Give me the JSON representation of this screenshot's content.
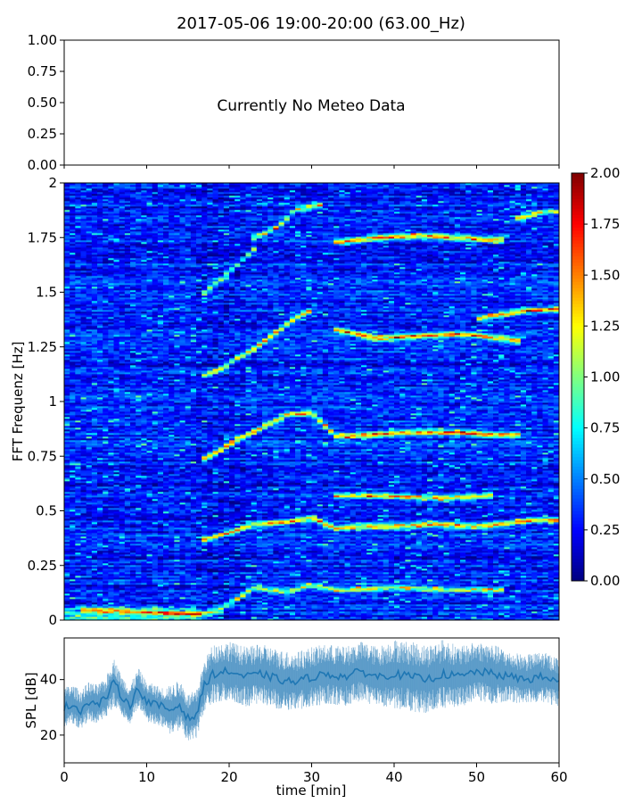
{
  "title": "2017-05-06 19:00-20:00 (63.00_Hz)",
  "chart_data": [
    {
      "panel": "meteo",
      "type": "line",
      "annotation": "Currently No Meteo Data",
      "ylim": [
        0,
        1
      ],
      "yticks": [
        "0.00",
        "0.25",
        "0.50",
        "0.75",
        "1.00"
      ],
      "series": []
    },
    {
      "panel": "spectrogram",
      "type": "heatmap",
      "ylabel": "FFT Frequenz [Hz]",
      "ylim": [
        0,
        2
      ],
      "yticks": [
        "0",
        "0.25",
        "0.5",
        "0.75",
        "1",
        "1.25",
        "1.5",
        "1.75",
        "2"
      ],
      "xlim": [
        0,
        60
      ],
      "colorbar": {
        "range": [
          0,
          2
        ],
        "colormap": "jet",
        "ticks": [
          "0.00",
          "0.25",
          "0.50",
          "0.75",
          "1.00",
          "1.25",
          "1.50",
          "1.75",
          "2.00"
        ]
      },
      "background_level": 0.3,
      "ridges": [
        {
          "t": [
            2,
            10,
            17,
            19,
            23,
            27,
            30,
            33,
            40,
            47,
            53
          ],
          "f": [
            0.05,
            0.04,
            0.03,
            0.05,
            0.15,
            0.13,
            0.16,
            0.14,
            0.15,
            0.14,
            0.14
          ],
          "level": 1.2
        },
        {
          "t": [
            17,
            20,
            23,
            27,
            30,
            33,
            36,
            40,
            45,
            50,
            53,
            57,
            60
          ],
          "f": [
            0.37,
            0.4,
            0.44,
            0.45,
            0.47,
            0.42,
            0.43,
            0.43,
            0.44,
            0.43,
            0.44,
            0.46,
            0.46
          ],
          "level": 1.45
        },
        {
          "t": [
            33,
            38,
            43,
            48,
            52
          ],
          "f": [
            0.57,
            0.57,
            0.56,
            0.56,
            0.57
          ],
          "level": 1.3
        },
        {
          "t": [
            17,
            19,
            21,
            24,
            27,
            30,
            33,
            37,
            42,
            47,
            52,
            55
          ],
          "f": [
            0.74,
            0.78,
            0.83,
            0.88,
            0.94,
            0.95,
            0.84,
            0.85,
            0.86,
            0.86,
            0.85,
            0.85
          ],
          "level": 1.5
        },
        {
          "t": [
            17,
            19,
            21,
            23,
            25,
            28,
            30
          ],
          "f": [
            1.12,
            1.15,
            1.2,
            1.24,
            1.3,
            1.38,
            1.42
          ],
          "level": 1.35
        },
        {
          "t": [
            33,
            38,
            43,
            48,
            53,
            55
          ],
          "f": [
            1.33,
            1.29,
            1.3,
            1.31,
            1.29,
            1.28
          ],
          "level": 1.45
        },
        {
          "t": [
            50,
            53,
            57,
            60
          ],
          "f": [
            1.38,
            1.4,
            1.42,
            1.42
          ],
          "level": 1.4
        },
        {
          "t": [
            17,
            19,
            21,
            23
          ],
          "f": [
            1.5,
            1.56,
            1.63,
            1.7
          ],
          "level": 1.1
        },
        {
          "t": [
            23,
            26,
            28,
            31
          ],
          "f": [
            1.75,
            1.8,
            1.88,
            1.9
          ],
          "level": 1.2
        },
        {
          "t": [
            33,
            38,
            43,
            48,
            53
          ],
          "f": [
            1.73,
            1.75,
            1.76,
            1.75,
            1.74
          ],
          "level": 1.45
        },
        {
          "t": [
            55,
            58,
            60
          ],
          "f": [
            1.84,
            1.87,
            1.87
          ],
          "level": 1.25
        }
      ]
    },
    {
      "panel": "spl",
      "type": "line",
      "xlabel": "time [min]",
      "ylabel": "SPL [dB]",
      "xlim": [
        0,
        60
      ],
      "ylim": [
        10,
        55
      ],
      "xticks": [
        "0",
        "10",
        "20",
        "30",
        "40",
        "50",
        "60"
      ],
      "yticks": [
        "20",
        "40"
      ],
      "color": "#1f77b4",
      "series": [
        {
          "x": [
            0,
            1,
            2,
            3,
            4,
            5,
            6,
            7,
            8,
            9,
            10,
            11,
            12,
            13,
            14,
            15,
            16,
            17,
            18,
            20,
            22,
            24,
            26,
            28,
            30,
            32,
            34,
            36,
            38,
            40,
            42,
            44,
            46,
            48,
            50,
            52,
            54,
            56,
            58,
            60
          ],
          "y": [
            30,
            31,
            29,
            32,
            31,
            33,
            39,
            34,
            31,
            37,
            32,
            31,
            30,
            29,
            31,
            26,
            27,
            38,
            42,
            43,
            41,
            42,
            40,
            39,
            41,
            42,
            41,
            43,
            41,
            42,
            41,
            40,
            42,
            41,
            43,
            42,
            41,
            40,
            41,
            39
          ],
          "spread": [
            4,
            4,
            4,
            4,
            4,
            4,
            5,
            4,
            4,
            4,
            4,
            4,
            4,
            5,
            5,
            5,
            5,
            5,
            6,
            6,
            6,
            6,
            6,
            6,
            6,
            6,
            6,
            6,
            6,
            7,
            7,
            7,
            7,
            6,
            6,
            6,
            5,
            5,
            5,
            5
          ]
        }
      ]
    }
  ]
}
